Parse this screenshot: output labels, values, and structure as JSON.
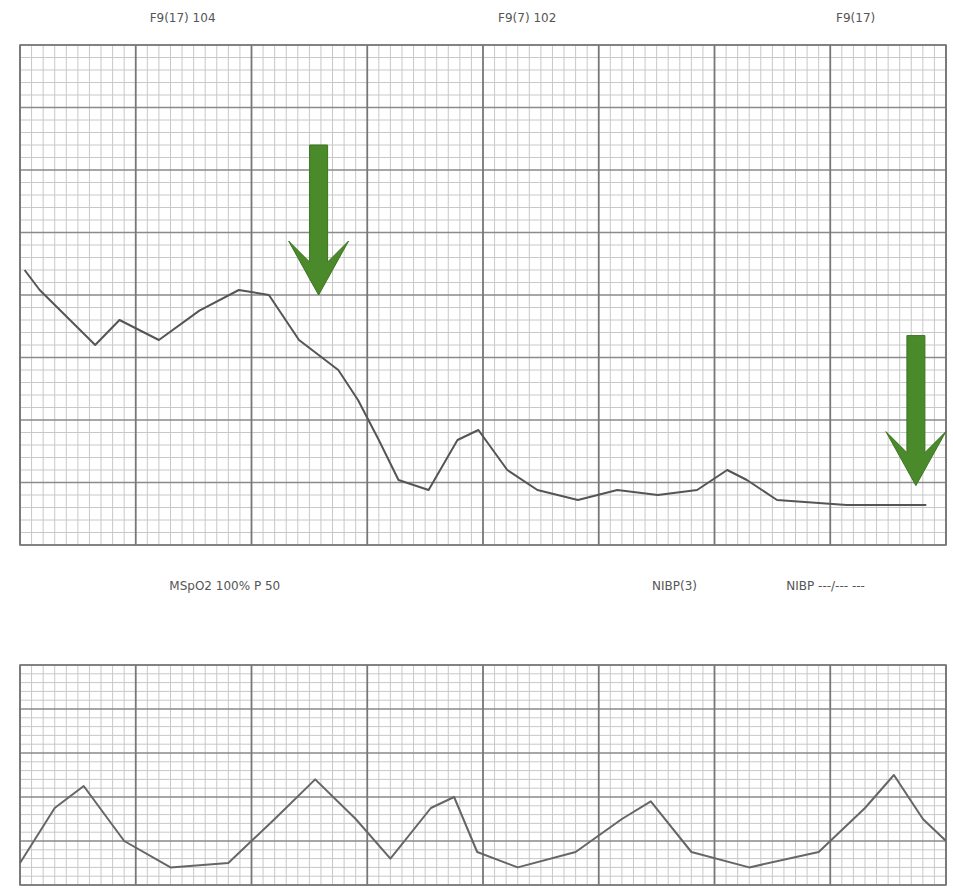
{
  "chart_data": [
    {
      "type": "line",
      "x": [
        0.04,
        0.17,
        0.65,
        0.86,
        1.2,
        1.55,
        1.89,
        2.15,
        2.41,
        2.75,
        2.92,
        3.1,
        3.27,
        3.53,
        3.78,
        3.96,
        4.21,
        4.47,
        4.82,
        5.16,
        5.51,
        5.85,
        6.11,
        6.28,
        6.54,
        7.14,
        7.83
      ],
      "values": [
        138,
        131.6,
        114,
        122,
        115.6,
        125,
        131.6,
        130,
        115.6,
        106,
        96.4,
        83.6,
        70.8,
        67.6,
        83.6,
        86.8,
        74,
        67.6,
        64.4,
        67.6,
        66,
        67.6,
        74,
        70.8,
        64.4,
        62.8,
        62.8
      ],
      "color": "#555555",
      "xlim": [
        0,
        8
      ],
      "xticks": [
        0,
        1,
        2,
        3,
        4,
        5,
        6,
        7,
        8
      ],
      "ylim": [
        50,
        210
      ],
      "yticks": [
        50,
        70,
        90,
        110,
        130,
        150,
        170,
        190,
        210
      ],
      "grid": true,
      "tick_labels": false,
      "header_labels": [
        {
          "x": 1.12,
          "text": "F9(17) 104"
        },
        {
          "x": 4.13,
          "text": "F9(7) 102"
        },
        {
          "x": 7.05,
          "text": "F9(17)"
        }
      ],
      "arrows": [
        {
          "x": 2.58,
          "y": 130
        },
        {
          "x": 7.74,
          "y": 69
        }
      ],
      "arrow_color": "#4a8a2a"
    },
    {
      "type": "line",
      "x": [
        0,
        0.3,
        0.55,
        0.9,
        1.3,
        1.8,
        2.2,
        2.55,
        2.9,
        3.2,
        3.55,
        3.75,
        3.95,
        4.3,
        4.8,
        5.2,
        5.45,
        5.8,
        6.3,
        6.9,
        7.3,
        7.55,
        7.8,
        8
      ],
      "values": [
        10,
        35,
        45,
        20,
        8,
        10,
        30,
        48,
        30,
        12,
        35,
        40,
        15,
        8,
        15,
        30,
        38,
        15,
        8,
        15,
        35,
        50,
        30,
        20
      ],
      "color": "#666666",
      "xlim": [
        0,
        8
      ],
      "xticks": [
        0,
        1,
        2,
        3,
        4,
        5,
        6,
        7,
        8
      ],
      "ylim": [
        0,
        100
      ],
      "yticks": [
        0,
        20,
        40,
        60,
        80,
        100
      ],
      "grid": true,
      "tick_labels": false,
      "header_labels": [
        {
          "x": 1.29,
          "text": "MSpO2 100% P 50"
        },
        {
          "x": 5.46,
          "text": "NIBP(3)"
        },
        {
          "x": 6.62,
          "text": "NIBP ---/--- ---"
        }
      ]
    }
  ]
}
